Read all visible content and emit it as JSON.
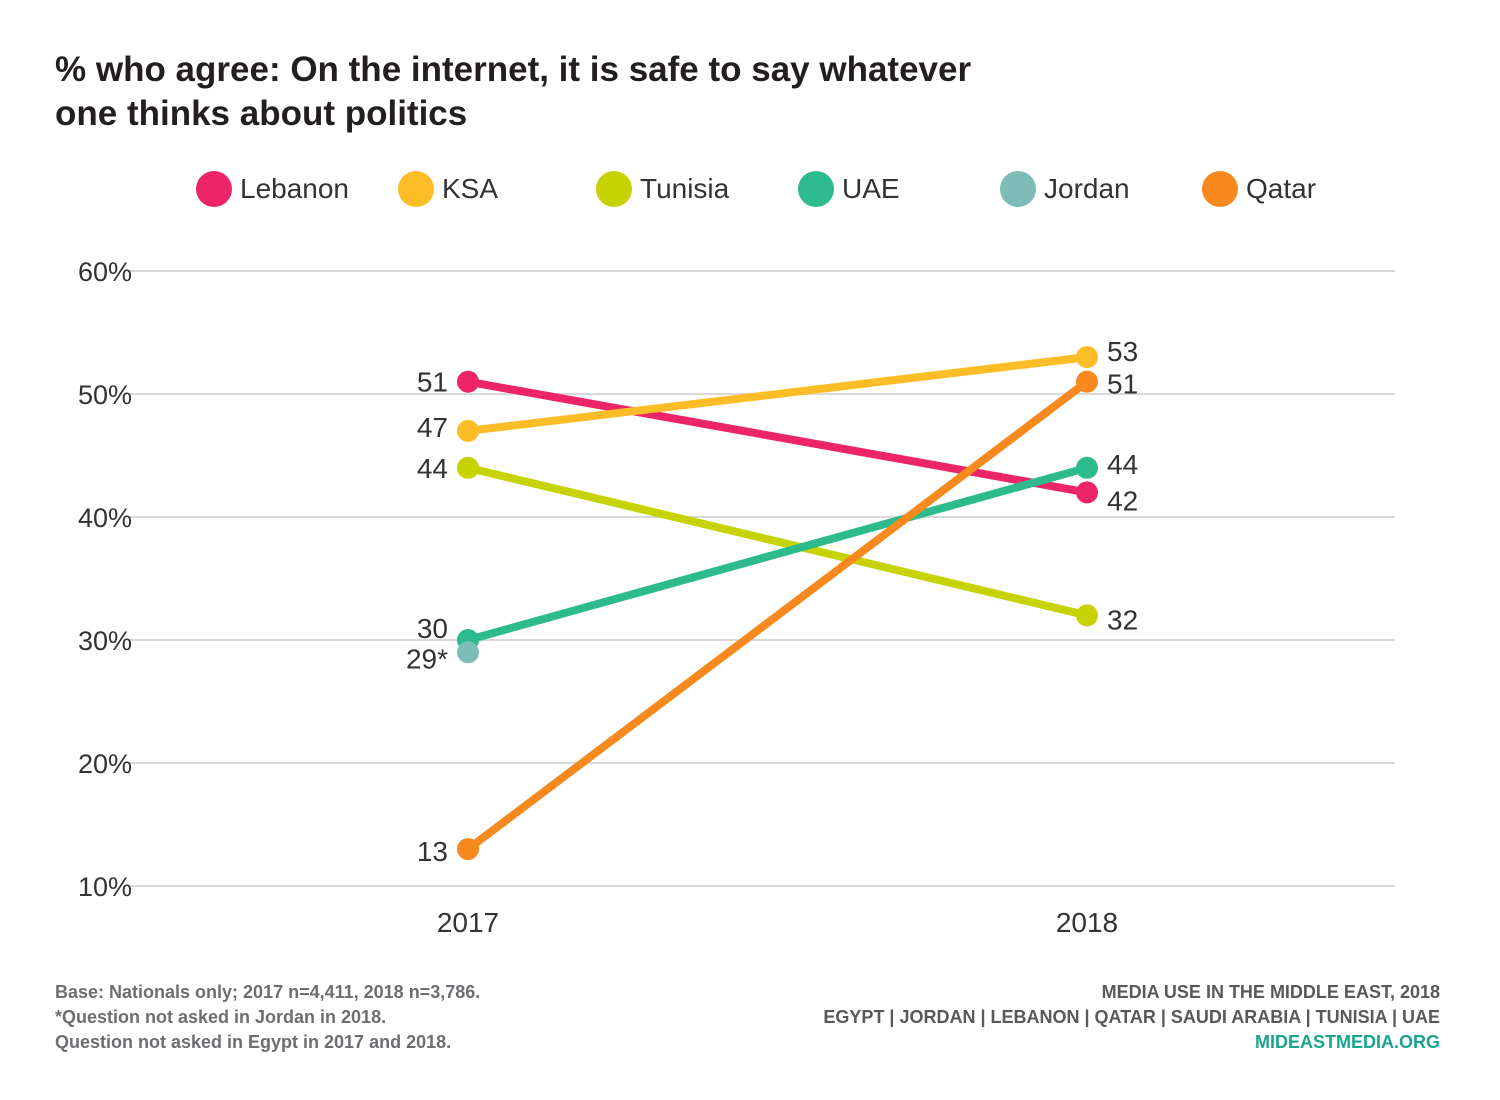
{
  "title_lines": [
    "% who agree: On the internet, it is safe to say whatever",
    "one thinks about politics"
  ],
  "chart_data": {
    "type": "line",
    "title": "% who agree: On the internet, it is safe to say whatever one thinks about politics",
    "x": [
      "2017",
      "2018"
    ],
    "ylim": [
      10,
      60
    ],
    "y_ticks": [
      "10%",
      "20%",
      "30%",
      "40%",
      "50%",
      "60%"
    ],
    "y_tick_values": [
      10,
      20,
      30,
      40,
      50,
      60
    ],
    "grid": true,
    "legend_position": "top",
    "series": [
      {
        "name": "Lebanon",
        "color": "#ec2569",
        "values": [
          51,
          42
        ],
        "labels": [
          "51",
          "42"
        ]
      },
      {
        "name": "KSA",
        "color": "#fcbd26",
        "values": [
          47,
          53
        ],
        "labels": [
          "47",
          "53"
        ]
      },
      {
        "name": "Tunisia",
        "color": "#c6d300",
        "values": [
          44,
          32
        ],
        "labels": [
          "44",
          "32"
        ]
      },
      {
        "name": "UAE",
        "color": "#2dbb8d",
        "values": [
          30,
          44
        ],
        "labels": [
          "30",
          "44"
        ]
      },
      {
        "name": "Jordan",
        "color": "#7ebcb8",
        "values": [
          29,
          null
        ],
        "labels": [
          "29*",
          ""
        ]
      },
      {
        "name": "Qatar",
        "color": "#f7891f",
        "values": [
          13,
          51
        ],
        "labels": [
          "13",
          "51"
        ]
      }
    ]
  },
  "footer_left": [
    "Base: Nationals only; 2017 n=4,411, 2018 n=3,786.",
    "*Question not asked in Jordan in 2018.",
    "Question not asked in Egypt in 2017 and 2018."
  ],
  "footer_right": {
    "line1": "MEDIA USE IN THE MIDDLE EAST, 2018",
    "line2": "EGYPT | JORDAN | LEBANON | QATAR | SAUDI ARABIA | TUNISIA | UAE",
    "url": "MIDEASTMEDIA.ORG"
  }
}
